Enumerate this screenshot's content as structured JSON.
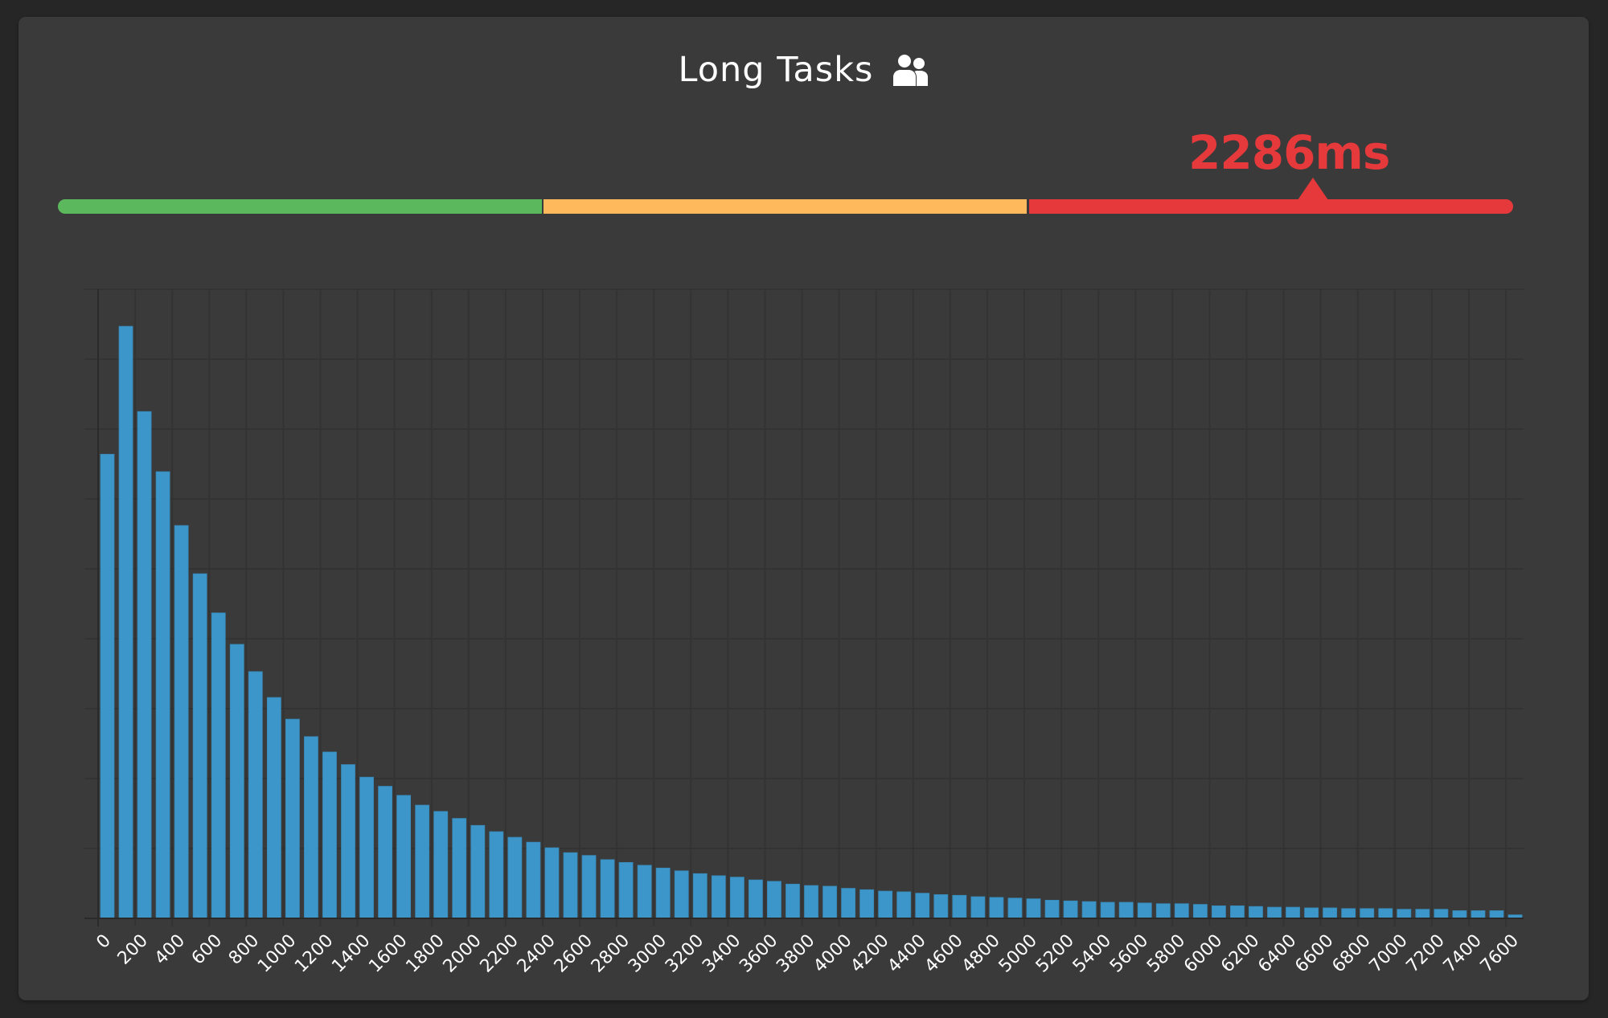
{
  "header": {
    "title": "Long Tasks",
    "icon": "users-icon"
  },
  "summary": {
    "value_label": "2286ms",
    "value_ms": 2286,
    "status": "poor"
  },
  "thresholds": {
    "segments": [
      {
        "name": "good",
        "color": "#5cb85c"
      },
      {
        "name": "needs-improvement",
        "color": "#fdb95c"
      },
      {
        "name": "poor",
        "color": "#e5393b"
      }
    ],
    "marker_color": "#e5393b"
  },
  "colors": {
    "bar": "#3d96c9",
    "grid": "#333333",
    "axis": "#2a2a2a",
    "tick_label": "#ffffff",
    "panel": "#3a3a3a",
    "background": "#262626"
  },
  "chart_data": {
    "type": "bar",
    "title": "Long Tasks",
    "xlabel": "",
    "ylabel": "",
    "x_unit": "ms",
    "bin_width": 100,
    "x_tick_step": 200,
    "x_tick_labels": [
      "0",
      "200",
      "400",
      "600",
      "800",
      "1000",
      "1200",
      "1400",
      "1600",
      "1800",
      "2000",
      "2200",
      "2400",
      "2600",
      "2800",
      "3000",
      "3200",
      "3400",
      "3600",
      "3800",
      "4000",
      "4200",
      "4400",
      "4600",
      "4800",
      "5000",
      "5200",
      "5400",
      "5600",
      "5800",
      "6000",
      "6200",
      "6400",
      "6600",
      "6800",
      "7000",
      "7200",
      "7400",
      "7600"
    ],
    "y_tick_labels_visible": false,
    "grid": true,
    "y_grid_lines": 9,
    "ylim": [
      0,
      9
    ],
    "bins_start": [
      0,
      100,
      200,
      300,
      400,
      500,
      600,
      700,
      800,
      900,
      1000,
      1100,
      1200,
      1300,
      1400,
      1500,
      1600,
      1700,
      1800,
      1900,
      2000,
      2100,
      2200,
      2300,
      2400,
      2500,
      2600,
      2700,
      2800,
      2900,
      3000,
      3100,
      3200,
      3300,
      3400,
      3500,
      3600,
      3700,
      3800,
      3900,
      4000,
      4100,
      4200,
      4300,
      4400,
      4500,
      4600,
      4700,
      4800,
      4900,
      5000,
      5100,
      5200,
      5300,
      5400,
      5500,
      5600,
      5700,
      5800,
      5900,
      6000,
      6100,
      6200,
      6300,
      6400,
      6500,
      6600,
      6700,
      6800,
      6900,
      7000,
      7100,
      7200,
      7300,
      7400,
      7500,
      7600
    ],
    "values": [
      6.64,
      8.47,
      7.25,
      6.39,
      5.62,
      4.93,
      4.37,
      3.92,
      3.53,
      3.16,
      2.85,
      2.6,
      2.38,
      2.2,
      2.02,
      1.89,
      1.76,
      1.62,
      1.53,
      1.43,
      1.33,
      1.24,
      1.16,
      1.09,
      1.01,
      0.94,
      0.9,
      0.84,
      0.8,
      0.76,
      0.72,
      0.68,
      0.64,
      0.61,
      0.59,
      0.55,
      0.53,
      0.49,
      0.47,
      0.46,
      0.43,
      0.41,
      0.39,
      0.38,
      0.36,
      0.34,
      0.33,
      0.31,
      0.3,
      0.29,
      0.28,
      0.26,
      0.25,
      0.24,
      0.23,
      0.23,
      0.22,
      0.21,
      0.21,
      0.2,
      0.18,
      0.18,
      0.17,
      0.16,
      0.16,
      0.15,
      0.15,
      0.14,
      0.14,
      0.14,
      0.13,
      0.13,
      0.13,
      0.11,
      0.11,
      0.11,
      0.05
    ]
  }
}
